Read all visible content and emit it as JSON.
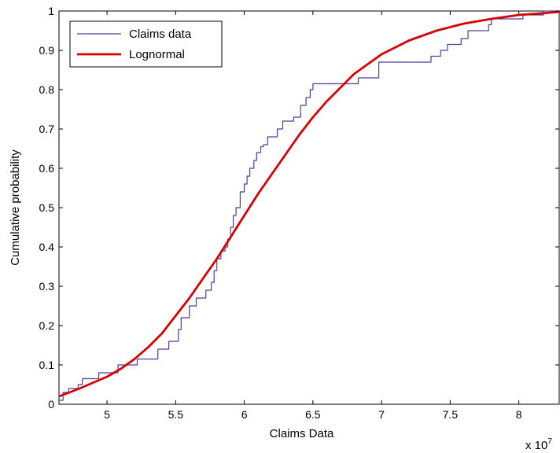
{
  "chart_data": {
    "type": "line",
    "xlabel": "Claims Data",
    "ylabel": "Cumulative probability",
    "x_multiplier_label": "x 10",
    "x_multiplier_exp": "7",
    "xlim": [
      4.65,
      8.3
    ],
    "ylim": [
      0,
      1
    ],
    "x_ticks": [
      "5",
      "5.5",
      "6",
      "6.5",
      "7",
      "7.5",
      "8"
    ],
    "y_ticks": [
      "0",
      "0.1",
      "0.2",
      "0.3",
      "0.4",
      "0.5",
      "0.6",
      "0.7",
      "0.8",
      "0.9",
      "1"
    ],
    "grid": false,
    "legend_position": "top-left",
    "series": [
      {
        "name": "Claims data",
        "color": "#4b3fa0",
        "style": "step",
        "x": [
          4.65,
          4.68,
          4.72,
          4.79,
          4.82,
          4.94,
          5.08,
          5.22,
          5.37,
          5.45,
          5.52,
          5.54,
          5.6,
          5.65,
          5.72,
          5.76,
          5.78,
          5.8,
          5.83,
          5.86,
          5.88,
          5.9,
          5.92,
          5.94,
          5.97,
          6.0,
          6.02,
          6.04,
          6.07,
          6.09,
          6.12,
          6.14,
          6.17,
          6.24,
          6.28,
          6.36,
          6.41,
          6.45,
          6.48,
          6.5,
          6.83,
          6.98,
          7.36,
          7.43,
          7.48,
          7.58,
          7.63,
          7.78,
          7.8,
          8.03,
          8.18,
          8.3
        ],
        "y": [
          0.01,
          0.03,
          0.04,
          0.05,
          0.065,
          0.08,
          0.1,
          0.115,
          0.14,
          0.16,
          0.19,
          0.22,
          0.25,
          0.27,
          0.29,
          0.31,
          0.34,
          0.37,
          0.39,
          0.4,
          0.42,
          0.45,
          0.48,
          0.5,
          0.54,
          0.56,
          0.58,
          0.6,
          0.62,
          0.64,
          0.655,
          0.66,
          0.68,
          0.7,
          0.72,
          0.73,
          0.76,
          0.78,
          0.8,
          0.815,
          0.83,
          0.87,
          0.885,
          0.9,
          0.915,
          0.93,
          0.95,
          0.965,
          0.98,
          0.99,
          1.0,
          1.0
        ]
      },
      {
        "name": "Lognormal",
        "color": "#d60000",
        "style": "smooth",
        "x": [
          4.65,
          4.8,
          4.9,
          5.0,
          5.1,
          5.2,
          5.3,
          5.4,
          5.5,
          5.6,
          5.7,
          5.8,
          5.9,
          6.0,
          6.1,
          6.2,
          6.3,
          6.4,
          6.5,
          6.6,
          6.7,
          6.8,
          6.9,
          7.0,
          7.2,
          7.4,
          7.6,
          7.8,
          8.0,
          8.2,
          8.3
        ],
        "y": [
          0.02,
          0.04,
          0.055,
          0.07,
          0.09,
          0.115,
          0.145,
          0.18,
          0.225,
          0.27,
          0.32,
          0.37,
          0.425,
          0.48,
          0.535,
          0.585,
          0.635,
          0.685,
          0.73,
          0.77,
          0.805,
          0.84,
          0.865,
          0.89,
          0.925,
          0.95,
          0.968,
          0.98,
          0.99,
          0.995,
          0.998
        ]
      }
    ]
  }
}
